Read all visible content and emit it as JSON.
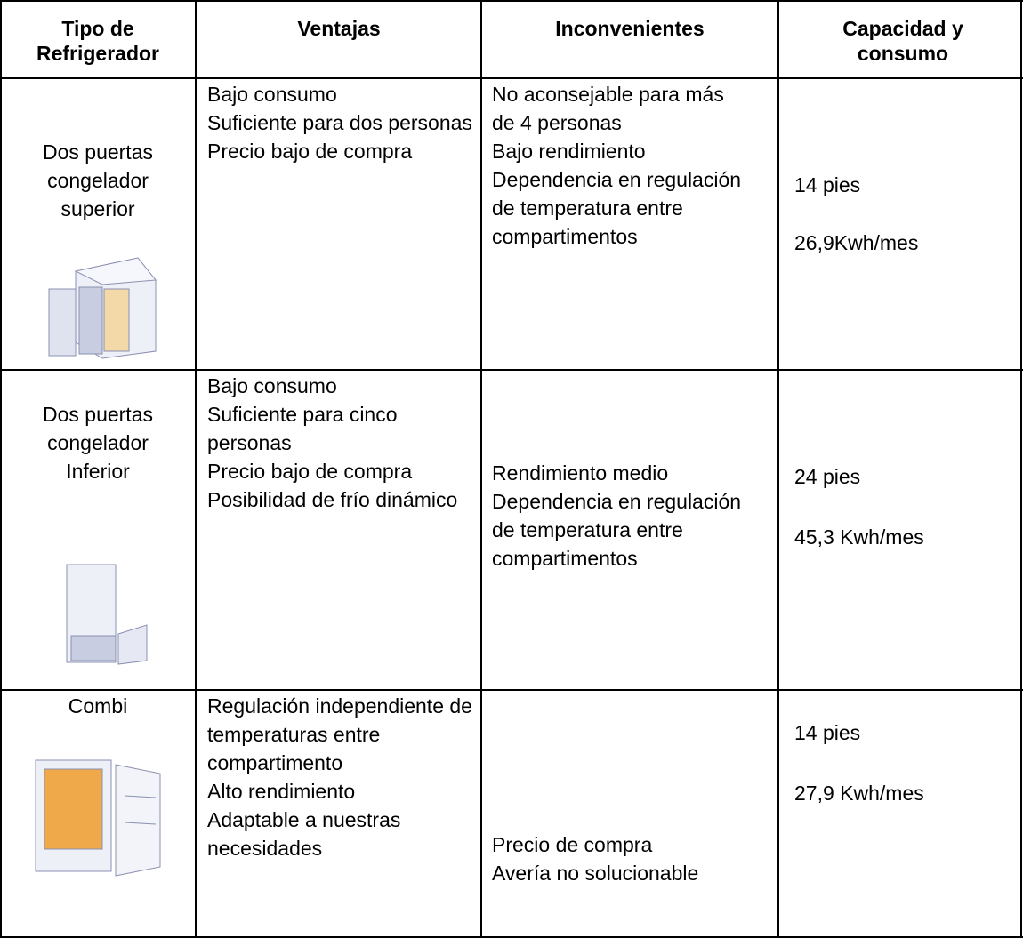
{
  "table": {
    "header": [
      "Tipo de Refrigerador",
      "Ventajas",
      "Inconvenientes",
      "Capacidad y consumo"
    ],
    "rows": [
      {
        "type": "Dos puertas congelador superior",
        "advantages": [
          "Bajo consumo",
          "Suficiente para dos personas",
          "Precio bajo de compra"
        ],
        "disadvantages": [
          "No aconsejable para más de 4 personas",
          "Bajo rendimiento",
          "Dependencia en regulación de temperatura entre compartimentos"
        ],
        "capacity": "14 pies",
        "consumption": "26,9Kwh/mes"
      },
      {
        "type": "Dos puertas congelador Inferior",
        "advantages": [
          "Bajo consumo",
          "Suficiente para cinco personas",
          "Precio bajo de compra",
          "Posibilidad de frío dinámico"
        ],
        "disadvantages": [
          "Rendimiento medio",
          "Dependencia en regulación de temperatura entre compartimentos"
        ],
        "capacity": "24 pies",
        "consumption": "45,3 Kwh/mes"
      },
      {
        "type": "Combi",
        "advantages": [
          "Regulación independiente de temperaturas entre compartimento",
          "Alto rendimiento",
          "Adaptable a nuestras necesidades"
        ],
        "disadvantages": [
          "Precio de compra",
          "Avería no solucionable"
        ],
        "capacity": "14 pies",
        "consumption": "27,9 Kwh/mes"
      }
    ]
  }
}
